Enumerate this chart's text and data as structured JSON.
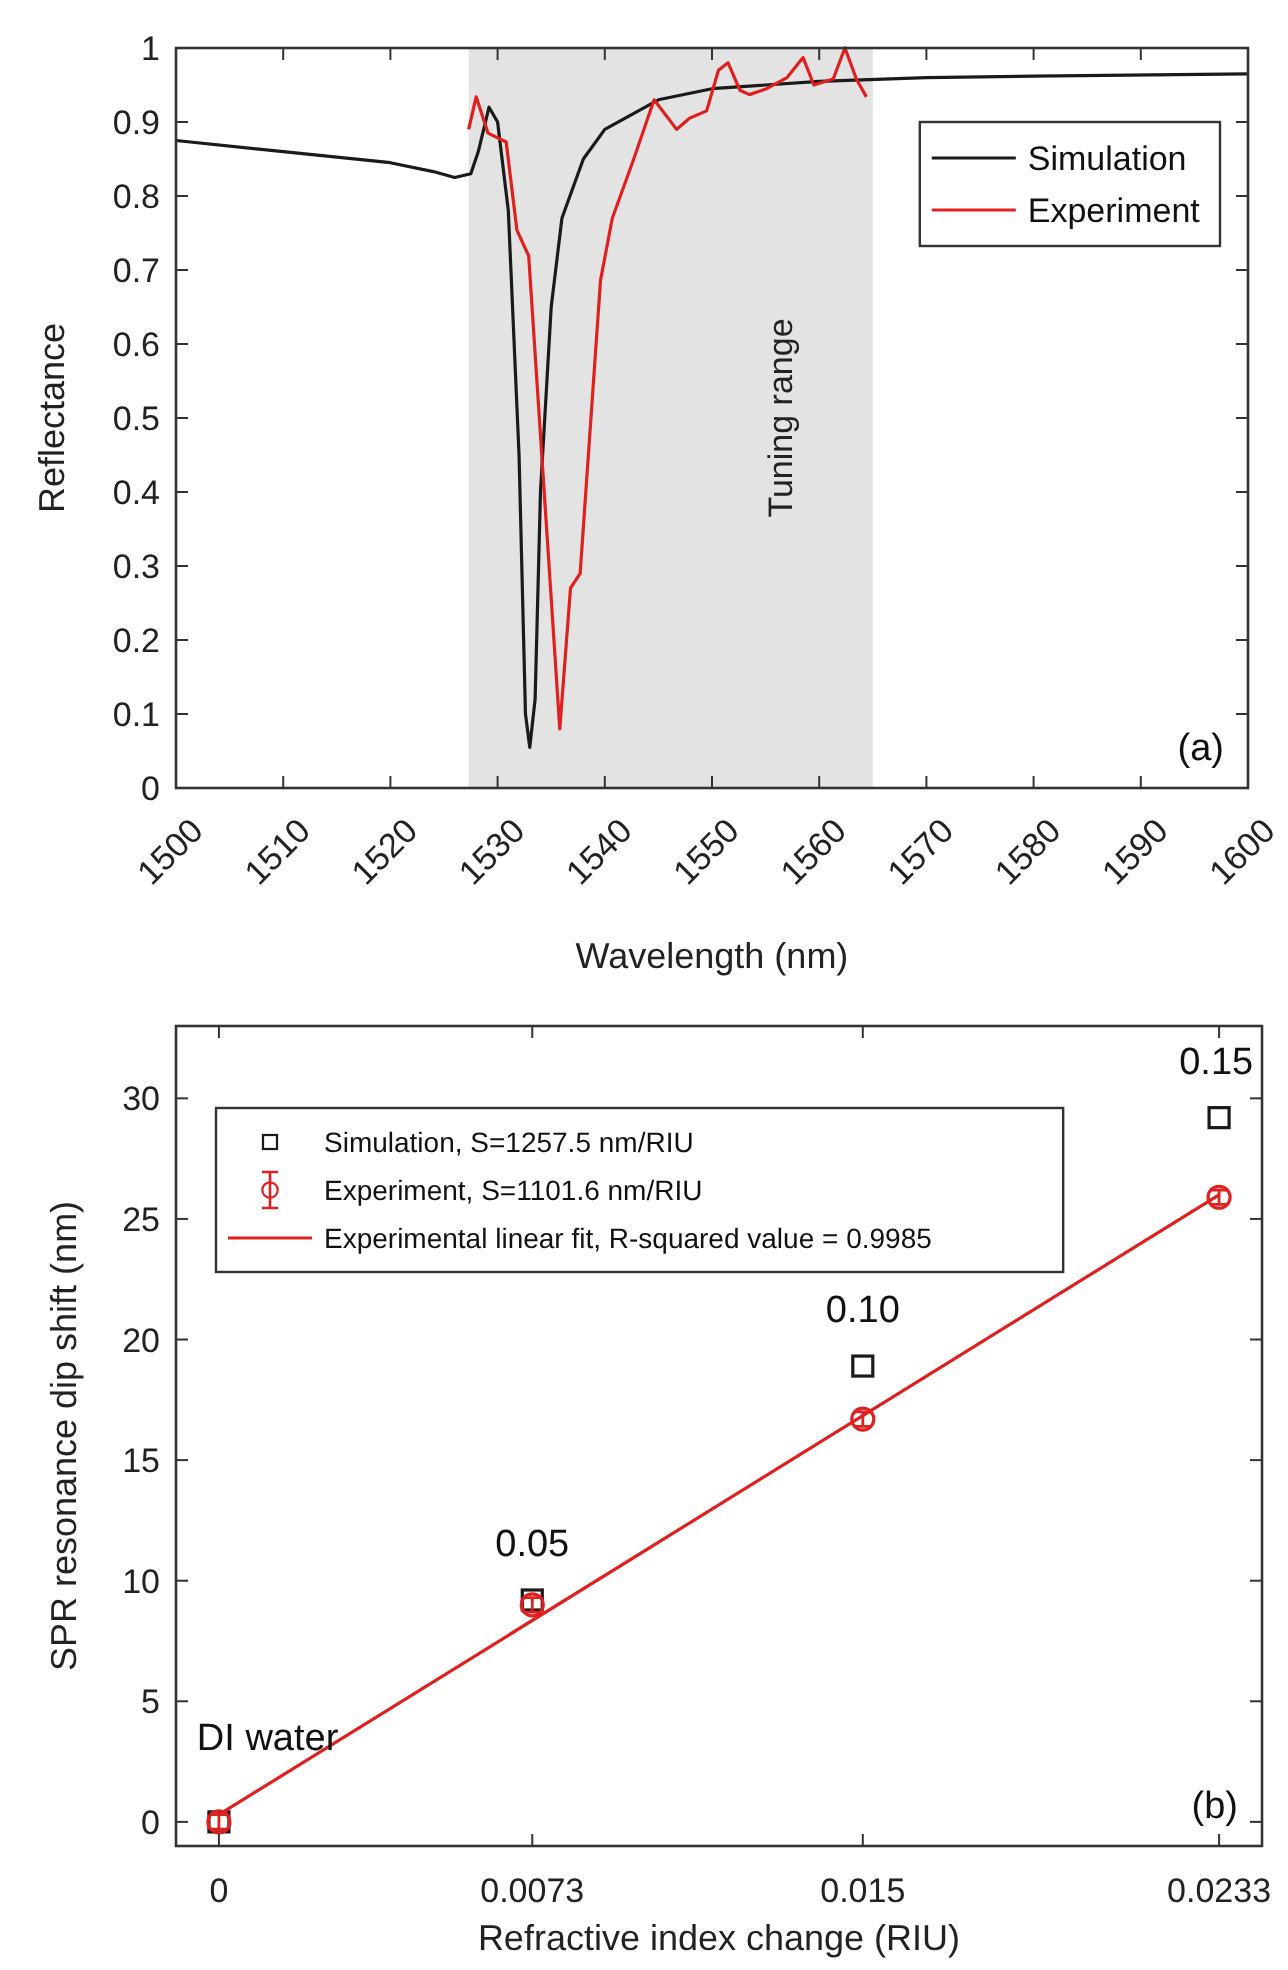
{
  "chart_data": [
    {
      "type": "line",
      "xlabel": "Wavelength (nm)",
      "ylabel": "Reflectance",
      "xlim": [
        1500,
        1600
      ],
      "ylim": [
        0,
        1
      ],
      "xticks": [
        1500,
        1510,
        1520,
        1530,
        1540,
        1550,
        1560,
        1570,
        1580,
        1590,
        1600
      ],
      "yticks": [
        0,
        0.1,
        0.2,
        0.3,
        0.4,
        0.5,
        0.6,
        0.7,
        0.8,
        0.9,
        1
      ],
      "legend": "top right",
      "grid": false,
      "line_style": "solid",
      "bands": [
        {
          "axis": "x",
          "from": 1527.3,
          "to": 1565,
          "label": "Tuning range",
          "color": "#e3e3e3"
        }
      ],
      "annotations": [
        "(a)"
      ],
      "series": [
        {
          "name": "Simulation",
          "color": "#1a1a1a",
          "x": [
            1500,
            1510,
            1520,
            1524,
            1526,
            1527.5,
            1528.2,
            1529.2,
            1530,
            1531,
            1532,
            1532.6,
            1533,
            1533.5,
            1534,
            1535,
            1536,
            1538,
            1540,
            1545,
            1550,
            1560,
            1570,
            1580,
            1600
          ],
          "values": [
            0.875,
            0.86,
            0.845,
            0.833,
            0.825,
            0.83,
            0.86,
            0.92,
            0.9,
            0.78,
            0.45,
            0.1,
            0.055,
            0.12,
            0.4,
            0.65,
            0.77,
            0.85,
            0.89,
            0.93,
            0.945,
            0.955,
            0.96,
            0.962,
            0.965
          ]
        },
        {
          "name": "Experiment",
          "color": "#e0201f",
          "x": [
            1527.3,
            1528,
            1529.1,
            1530.8,
            1531.8,
            1532.9,
            1535.8,
            1536.8,
            1537.7,
            1539.6,
            1540.7,
            1542.7,
            1544.6,
            1546.7,
            1547.9,
            1549.5,
            1550.6,
            1551.5,
            1552.6,
            1553.5,
            1555.1,
            1557,
            1558.5,
            1559.5,
            1561.3,
            1562.4,
            1563.5,
            1564.4
          ],
          "values": [
            0.89,
            0.934,
            0.885,
            0.873,
            0.754,
            0.719,
            0.08,
            0.27,
            0.29,
            0.686,
            0.77,
            0.85,
            0.93,
            0.89,
            0.905,
            0.915,
            0.97,
            0.98,
            0.943,
            0.937,
            0.945,
            0.96,
            0.987,
            0.95,
            0.958,
            1.0,
            0.957,
            0.934
          ]
        }
      ]
    },
    {
      "type": "scatter",
      "xlabel": "Refractive index change (RIU)",
      "ylabel": "SPR resonance dip shift (nm)",
      "xlim": [
        -0.001,
        0.0243
      ],
      "ylim": [
        -1,
        33
      ],
      "xticks": [
        0,
        0.0073,
        0.015,
        0.0233
      ],
      "yticks": [
        0,
        5,
        10,
        15,
        20,
        25,
        30
      ],
      "legend": "top left",
      "grid": false,
      "annotations": [
        {
          "text": "DI water",
          "x": 0,
          "y": 0
        },
        {
          "text": "0.05",
          "x": 0.0073,
          "y": 9.2
        },
        {
          "text": "0.10",
          "x": 0.015,
          "y": 18.9
        },
        {
          "text": "0.15",
          "x": 0.0233,
          "y": 29.2
        },
        "(b)"
      ],
      "series": [
        {
          "name": "Simulation, S=1257.5 nm/RIU",
          "marker": "square",
          "color": "#1a1a1a",
          "x": [
            0,
            0.0073,
            0.015,
            0.0233
          ],
          "values": [
            0,
            9.2,
            18.9,
            29.2
          ]
        },
        {
          "name": "Experiment, S=1101.6 nm/RIU",
          "marker": "circle",
          "color": "#e0201f",
          "x": [
            0,
            0.0073,
            0.015,
            0.0233
          ],
          "values": [
            0,
            9,
            16.7,
            25.9
          ],
          "errors": [
            0.3,
            0.3,
            0.3,
            0.3
          ]
        },
        {
          "name": "Experimental linear fit, R-squared value = 0.9985",
          "type": "line",
          "line_style": "solid",
          "color": "#e0201f",
          "x": [
            0,
            0.0233
          ],
          "values": [
            0.3,
            26
          ]
        }
      ]
    }
  ]
}
